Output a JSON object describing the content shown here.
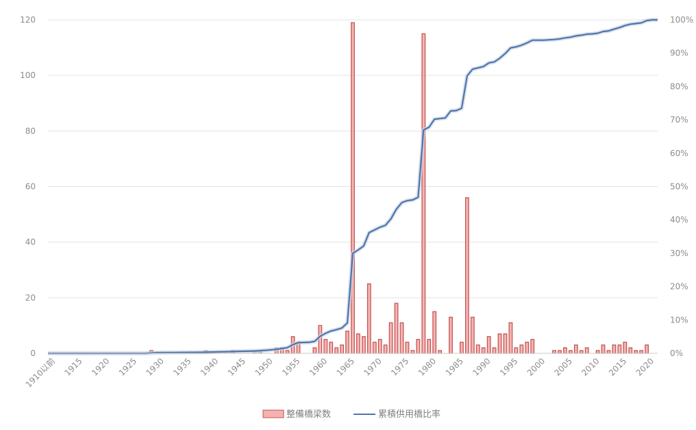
{
  "chart_data": {
    "type": "bar+line",
    "x_tick_labels": [
      "1910以前",
      "1915",
      "1920",
      "1925",
      "1930",
      "1935",
      "1940",
      "1945",
      "1950",
      "1955",
      "1960",
      "1965",
      "1970",
      "1975",
      "1980",
      "1985",
      "1990",
      "1995",
      "2000",
      "2005",
      "2010",
      "2015",
      "2020"
    ],
    "y_left": {
      "ylim": [
        0,
        120
      ],
      "ticks": [
        "0",
        "20",
        "40",
        "60",
        "80",
        "100",
        "120"
      ]
    },
    "y_right": {
      "ylim": [
        0,
        100
      ],
      "ticks": [
        "0%",
        "10%",
        "20%",
        "30%",
        "40%",
        "50%",
        "60%",
        "70%",
        "80%",
        "90%",
        "100%"
      ]
    },
    "grid": true,
    "legend_position": "bottom",
    "bar_series": {
      "name": "整備橋梁数",
      "color": "#f4b3b3",
      "border": "#c0504d",
      "points": [
        {
          "x": 1928,
          "v": 1
        },
        {
          "x": 1938,
          "v": 1
        },
        {
          "x": 1943,
          "v": 1
        },
        {
          "x": 1947,
          "v": 1
        },
        {
          "x": 1948,
          "v": 1
        },
        {
          "x": 1951,
          "v": 2
        },
        {
          "x": 1952,
          "v": 2
        },
        {
          "x": 1953,
          "v": 1
        },
        {
          "x": 1954,
          "v": 6
        },
        {
          "x": 1955,
          "v": 4
        },
        {
          "x": 1958,
          "v": 2
        },
        {
          "x": 1959,
          "v": 10
        },
        {
          "x": 1960,
          "v": 5
        },
        {
          "x": 1961,
          "v": 4
        },
        {
          "x": 1962,
          "v": 2
        },
        {
          "x": 1963,
          "v": 3
        },
        {
          "x": 1964,
          "v": 8
        },
        {
          "x": 1965,
          "v": 119
        },
        {
          "x": 1966,
          "v": 7
        },
        {
          "x": 1967,
          "v": 6
        },
        {
          "x": 1968,
          "v": 25
        },
        {
          "x": 1969,
          "v": 4
        },
        {
          "x": 1970,
          "v": 5
        },
        {
          "x": 1971,
          "v": 3
        },
        {
          "x": 1972,
          "v": 11
        },
        {
          "x": 1973,
          "v": 18
        },
        {
          "x": 1974,
          "v": 11
        },
        {
          "x": 1975,
          "v": 4
        },
        {
          "x": 1976,
          "v": 1
        },
        {
          "x": 1977,
          "v": 5
        },
        {
          "x": 1978,
          "v": 115
        },
        {
          "x": 1979,
          "v": 5
        },
        {
          "x": 1980,
          "v": 15
        },
        {
          "x": 1981,
          "v": 1
        },
        {
          "x": 1983,
          "v": 13
        },
        {
          "x": 1985,
          "v": 4
        },
        {
          "x": 1986,
          "v": 56
        },
        {
          "x": 1987,
          "v": 13
        },
        {
          "x": 1988,
          "v": 3
        },
        {
          "x": 1989,
          "v": 2
        },
        {
          "x": 1990,
          "v": 6
        },
        {
          "x": 1991,
          "v": 2
        },
        {
          "x": 1992,
          "v": 7
        },
        {
          "x": 1993,
          "v": 7
        },
        {
          "x": 1994,
          "v": 11
        },
        {
          "x": 1995,
          "v": 2
        },
        {
          "x": 1996,
          "v": 3
        },
        {
          "x": 1997,
          "v": 4
        },
        {
          "x": 1998,
          "v": 5
        },
        {
          "x": 2002,
          "v": 1
        },
        {
          "x": 2003,
          "v": 1
        },
        {
          "x": 2004,
          "v": 2
        },
        {
          "x": 2005,
          "v": 1
        },
        {
          "x": 2006,
          "v": 3
        },
        {
          "x": 2007,
          "v": 1
        },
        {
          "x": 2008,
          "v": 2
        },
        {
          "x": 2010,
          "v": 1
        },
        {
          "x": 2011,
          "v": 3
        },
        {
          "x": 2012,
          "v": 1
        },
        {
          "x": 2013,
          "v": 3
        },
        {
          "x": 2014,
          "v": 3
        },
        {
          "x": 2015,
          "v": 4
        },
        {
          "x": 2016,
          "v": 2
        },
        {
          "x": 2017,
          "v": 1
        },
        {
          "x": 2018,
          "v": 1
        },
        {
          "x": 2019,
          "v": 3
        }
      ]
    },
    "line_series": {
      "name": "累積供用橋比率",
      "color": "#4f74a8",
      "points": [
        [
          1909,
          0
        ],
        [
          1927,
          0
        ],
        [
          1929,
          0.2
        ],
        [
          1937,
          0.3
        ],
        [
          1939,
          0.4
        ],
        [
          1942,
          0.5
        ],
        [
          1944,
          0.6
        ],
        [
          1947,
          0.7
        ],
        [
          1949,
          0.9
        ],
        [
          1951,
          1.2
        ],
        [
          1953,
          1.7
        ],
        [
          1954,
          2.6
        ],
        [
          1955,
          3.2
        ],
        [
          1957,
          3.3
        ],
        [
          1958,
          3.6
        ],
        [
          1959,
          5.1
        ],
        [
          1960,
          6
        ],
        [
          1961,
          6.7
        ],
        [
          1962,
          7.1
        ],
        [
          1963,
          7.6
        ],
        [
          1964,
          9.1
        ],
        [
          1965,
          30
        ],
        [
          1966,
          31
        ],
        [
          1967,
          32.2
        ],
        [
          1968,
          36.2
        ],
        [
          1969,
          37
        ],
        [
          1970,
          37.8
        ],
        [
          1971,
          38.4
        ],
        [
          1972,
          40.3
        ],
        [
          1973,
          43.2
        ],
        [
          1974,
          45.2
        ],
        [
          1975,
          45.8
        ],
        [
          1976,
          46
        ],
        [
          1977,
          46.8
        ],
        [
          1978,
          67
        ],
        [
          1979,
          67.8
        ],
        [
          1980,
          70.2
        ],
        [
          1981,
          70.4
        ],
        [
          1982,
          70.6
        ],
        [
          1983,
          72.7
        ],
        [
          1984,
          72.8
        ],
        [
          1985,
          73.5
        ],
        [
          1986,
          83.2
        ],
        [
          1987,
          85.2
        ],
        [
          1988,
          85.6
        ],
        [
          1989,
          86
        ],
        [
          1990,
          87.1
        ],
        [
          1991,
          87.4
        ],
        [
          1992,
          88.5
        ],
        [
          1993,
          89.9
        ],
        [
          1994,
          91.6
        ],
        [
          1995,
          91.9
        ],
        [
          1996,
          92.4
        ],
        [
          1997,
          93.1
        ],
        [
          1998,
          93.9
        ],
        [
          1999,
          93.9
        ],
        [
          2000,
          93.9
        ],
        [
          2001,
          94
        ],
        [
          2002,
          94.1
        ],
        [
          2003,
          94.3
        ],
        [
          2004,
          94.6
        ],
        [
          2005,
          94.8
        ],
        [
          2006,
          95.2
        ],
        [
          2007,
          95.4
        ],
        [
          2008,
          95.7
        ],
        [
          2009,
          95.8
        ],
        [
          2010,
          96
        ],
        [
          2011,
          96.5
        ],
        [
          2012,
          96.7
        ],
        [
          2013,
          97.2
        ],
        [
          2014,
          97.7
        ],
        [
          2015,
          98.3
        ],
        [
          2016,
          98.7
        ],
        [
          2017,
          98.9
        ],
        [
          2018,
          99.1
        ],
        [
          2019,
          99.8
        ],
        [
          2020,
          100
        ],
        [
          2021,
          100
        ]
      ]
    }
  }
}
